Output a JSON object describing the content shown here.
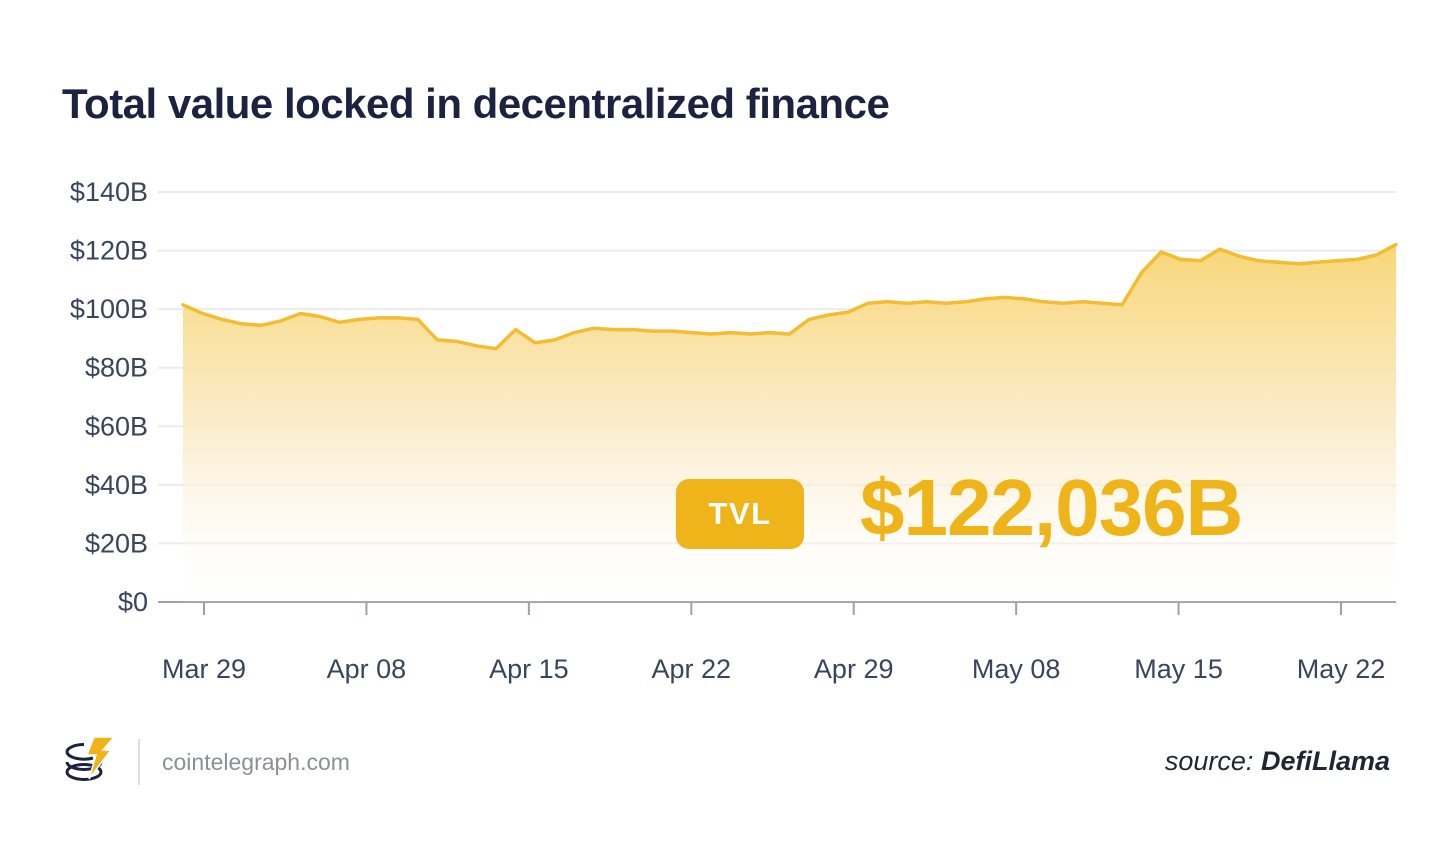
{
  "page": {
    "title": "Total value locked in decentralized finance"
  },
  "badge": {
    "label": "TVL"
  },
  "highlight_value": "$122,036B",
  "footer": {
    "site": "cointelegraph.com",
    "source_label": "source:",
    "source_name": "DefiLlama"
  },
  "colors": {
    "accent": "#f0b41b",
    "line": "#f3bc31",
    "title_text": "#1b2340",
    "axis_text": "#39455c",
    "gridline": "#ebebee",
    "axis_line": "#9aa2ae",
    "gradient_top": "#f8d470",
    "gradient_mid": "#fbeccb",
    "gradient_bottom": "#ffffff"
  },
  "chart_data": {
    "type": "area",
    "title": "Total value locked in decentralized finance",
    "xlabel": "",
    "ylabel": "",
    "ylim": [
      0,
      140
    ],
    "grid": "horizontal",
    "legend": "none",
    "y_tick_labels": [
      "$0",
      "$20B",
      "$40B",
      "$60B",
      "$80B",
      "$100B",
      "$120B",
      "$140B"
    ],
    "y_tick_values": [
      0,
      20,
      40,
      60,
      80,
      100,
      120,
      140
    ],
    "x_tick_labels": [
      "Mar 29",
      "Apr 08",
      "Apr 15",
      "Apr 22",
      "Apr 29",
      "May 08",
      "May 15",
      "May 22"
    ],
    "unit": "billions USD",
    "current_value": 122.036,
    "series": [
      {
        "name": "TVL",
        "values": [
          101.5,
          98.5,
          96.5,
          95,
          94.5,
          96,
          98.5,
          97.5,
          95.5,
          96.5,
          97,
          97,
          96.5,
          89.5,
          89,
          87.5,
          86.5,
          93,
          88.5,
          89.5,
          92,
          93.5,
          93,
          93,
          92.5,
          92.5,
          92,
          91.5,
          92,
          91.5,
          92,
          91.5,
          96.5,
          98,
          99,
          102,
          102.5,
          102,
          102.5,
          102,
          102.5,
          103.5,
          104,
          103.5,
          102.5,
          102,
          102.5,
          102,
          101.5,
          112.5,
          119.5,
          117,
          116.5,
          120.5,
          118,
          116.5,
          116,
          115.5,
          116,
          116.5,
          117,
          118.5,
          122.036
        ]
      }
    ]
  }
}
